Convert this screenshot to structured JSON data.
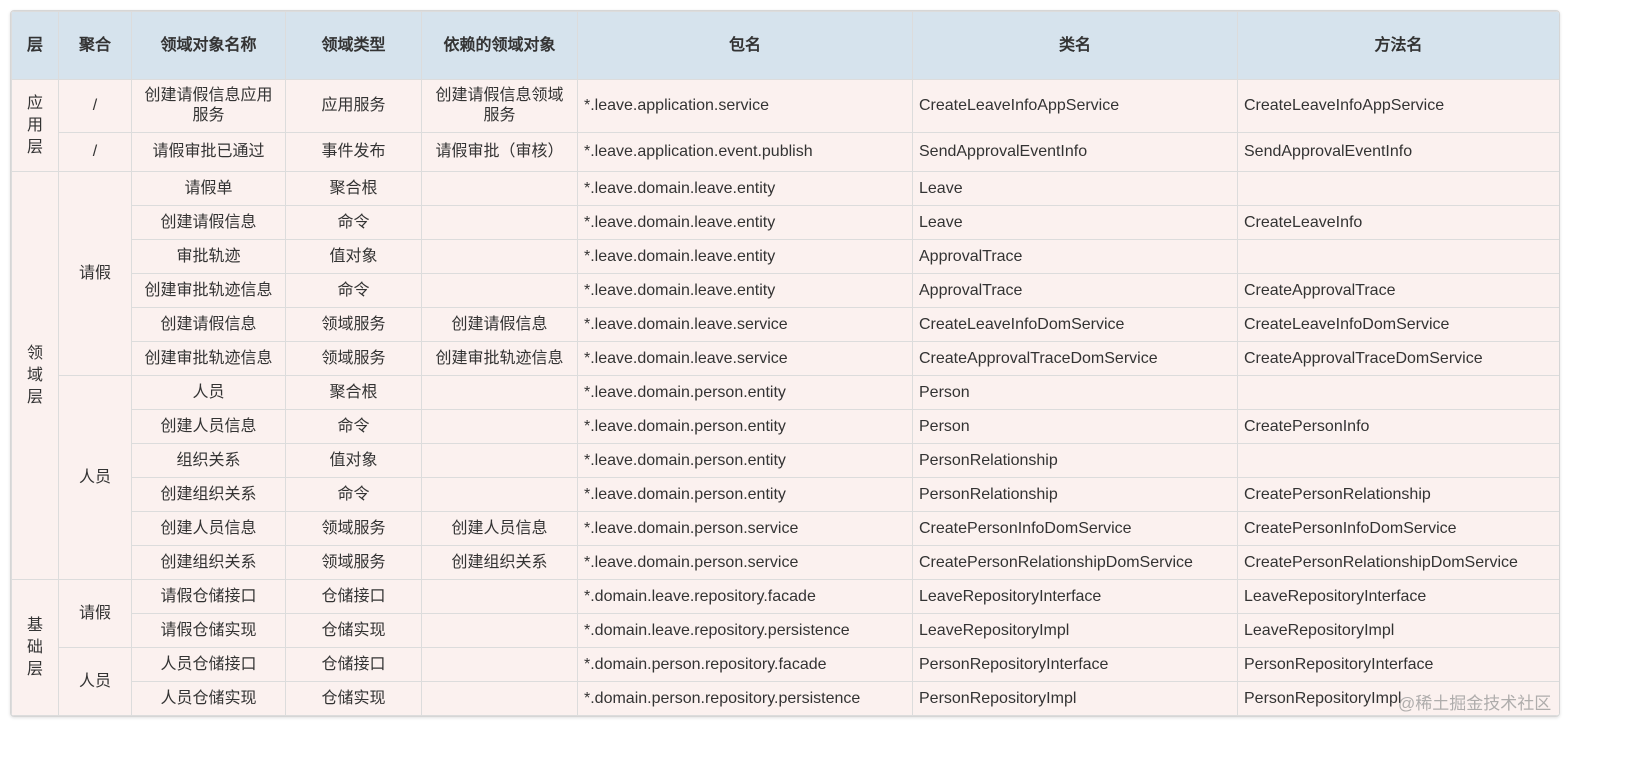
{
  "table": {
    "headers": [
      "层",
      "聚合",
      "领域对象名称",
      "领域类型",
      "依赖的领域对象",
      "包名",
      "类名",
      "方法名"
    ],
    "layers": [
      {
        "name": "应用层",
        "aggregates": [
          {
            "name": "/",
            "rows": [
              {
                "obj": "创建请假信息应用服务",
                "type": "应用服务",
                "dep": "创建请假信息领域服务",
                "pkg": "*.leave.application.service",
                "cls": "CreateLeaveInfoAppService",
                "method": "CreateLeaveInfoAppService"
              }
            ]
          },
          {
            "name": "/",
            "rows": [
              {
                "obj": "请假审批已通过",
                "type": "事件发布",
                "dep": "请假审批（审核）",
                "pkg": "*.leave.application.event.publish",
                "cls": "SendApprovalEventInfo",
                "method": "SendApprovalEventInfo"
              }
            ]
          }
        ]
      },
      {
        "name": "领域层",
        "aggregates": [
          {
            "name": "请假",
            "rows": [
              {
                "obj": "请假单",
                "type": "聚合根",
                "dep": "",
                "pkg": "*.leave.domain.leave.entity",
                "cls": "Leave",
                "method": ""
              },
              {
                "obj": "创建请假信息",
                "type": "命令",
                "dep": "",
                "pkg": "*.leave.domain.leave.entity",
                "cls": "Leave",
                "method": "CreateLeaveInfo"
              },
              {
                "obj": "审批轨迹",
                "type": "值对象",
                "dep": "",
                "pkg": "*.leave.domain.leave.entity",
                "cls": "ApprovalTrace",
                "method": ""
              },
              {
                "obj": "创建审批轨迹信息",
                "type": "命令",
                "dep": "",
                "pkg": "*.leave.domain.leave.entity",
                "cls": "ApprovalTrace",
                "method": "CreateApprovalTrace"
              },
              {
                "obj": "创建请假信息",
                "type": "领域服务",
                "dep": "创建请假信息",
                "pkg": "*.leave.domain.leave.service",
                "cls": "CreateLeaveInfoDomService",
                "method": "CreateLeaveInfoDomService"
              },
              {
                "obj": "创建审批轨迹信息",
                "type": "领域服务",
                "dep": "创建审批轨迹信息",
                "pkg": "*.leave.domain.leave.service",
                "cls": "CreateApprovalTraceDomService",
                "method": "CreateApprovalTraceDomService"
              }
            ]
          },
          {
            "name": "人员",
            "rows": [
              {
                "obj": "人员",
                "type": "聚合根",
                "dep": "",
                "pkg": "*.leave.domain.person.entity",
                "cls": "Person",
                "method": ""
              },
              {
                "obj": "创建人员信息",
                "type": "命令",
                "dep": "",
                "pkg": "*.leave.domain.person.entity",
                "cls": "Person",
                "method": "CreatePersonInfo"
              },
              {
                "obj": "组织关系",
                "type": "值对象",
                "dep": "",
                "pkg": "*.leave.domain.person.entity",
                "cls": "PersonRelationship",
                "method": ""
              },
              {
                "obj": "创建组织关系",
                "type": "命令",
                "dep": "",
                "pkg": "*.leave.domain.person.entity",
                "cls": "PersonRelationship",
                "method": "CreatePersonRelationship"
              },
              {
                "obj": "创建人员信息",
                "type": "领域服务",
                "dep": "创建人员信息",
                "pkg": "*.leave.domain.person.service",
                "cls": "CreatePersonInfoDomService",
                "method": "CreatePersonInfoDomService"
              },
              {
                "obj": "创建组织关系",
                "type": "领域服务",
                "dep": "创建组织关系",
                "pkg": "*.leave.domain.person.service",
                "cls": "CreatePersonRelationshipDomService",
                "method": "CreatePersonRelationshipDomService"
              }
            ]
          }
        ]
      },
      {
        "name": "基础层",
        "aggregates": [
          {
            "name": "请假",
            "rows": [
              {
                "obj": "请假仓储接口",
                "type": "仓储接口",
                "dep": "",
                "pkg": "*.domain.leave.repository.facade",
                "cls": "LeaveRepositoryInterface",
                "method": "LeaveRepositoryInterface"
              },
              {
                "obj": "请假仓储实现",
                "type": "仓储实现",
                "dep": "",
                "pkg": "*.domain.leave.repository.persistence",
                "cls": "LeaveRepositoryImpl",
                "method": "LeaveRepositoryImpl"
              }
            ]
          },
          {
            "name": "人员",
            "rows": [
              {
                "obj": "人员仓储接口",
                "type": "仓储接口",
                "dep": "",
                "pkg": "*.domain.person.repository.facade",
                "cls": "PersonRepositoryInterface",
                "method": "PersonRepositoryInterface"
              },
              {
                "obj": "人员仓储实现",
                "type": "仓储实现",
                "dep": "",
                "pkg": "*.domain.person.repository.persistence",
                "cls": "PersonRepositoryImpl",
                "method": "PersonRepositoryImpl"
              }
            ]
          }
        ]
      }
    ]
  },
  "watermark": "@稀土掘金技术社区",
  "colors": {
    "header_bg": "#d6e3ed",
    "cell_bg": "#fbf1ef",
    "border": "#dcdcdc"
  }
}
